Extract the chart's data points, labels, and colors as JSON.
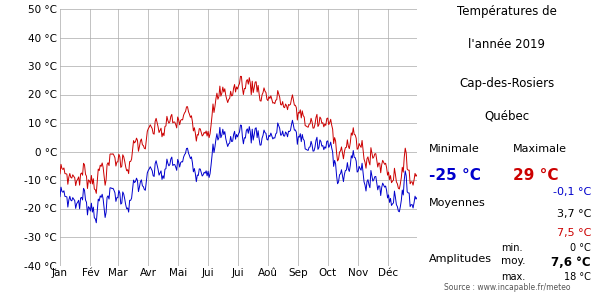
{
  "title_line1": "Températures de",
  "title_line2": "l'année 2019",
  "subtitle_line1": "Cap-des-Rosiers",
  "subtitle_line2": "Québec",
  "source": "Source : www.incapable.fr/meteo",
  "color_max": "#cc0000",
  "color_min": "#0000cc",
  "color_mean": "#333333",
  "ylim": [
    -40,
    50
  ],
  "yticks": [
    -40,
    -30,
    -20,
    -10,
    0,
    10,
    20,
    30,
    40,
    50
  ],
  "months": [
    "Jan",
    "Fév",
    "Mar",
    "Avr",
    "Mai",
    "Jui",
    "Jui",
    "Aoû",
    "Sep",
    "Oct",
    "Nov",
    "Déc"
  ],
  "stat_min_min": "-25 °C",
  "stat_min_max": "29 °C",
  "stat_mean_min": "-0,1 °C",
  "stat_mean_mean": "3,7 °C",
  "stat_mean_max": "7,5 °C",
  "stat_amp_min": "0 °C",
  "stat_amp_moy": "7,6 °C",
  "stat_amp_max": "18 °C",
  "background_color": "#ffffff",
  "grid_color": "#aaaaaa"
}
